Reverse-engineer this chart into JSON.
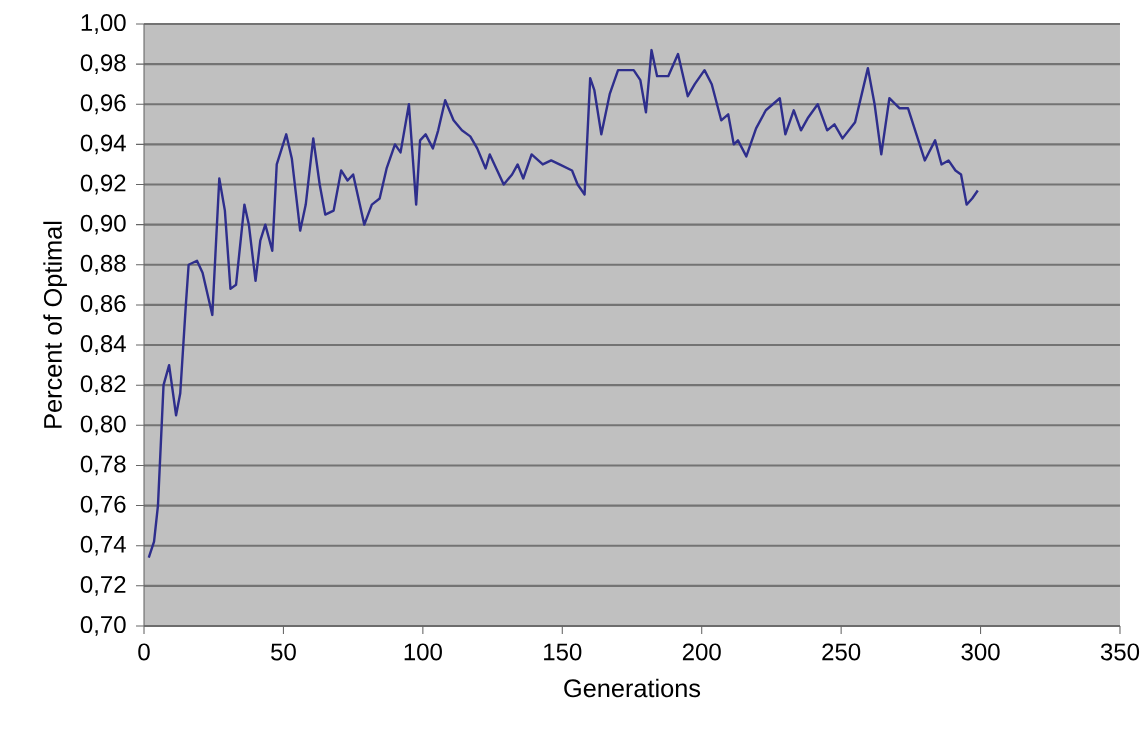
{
  "chart_data": {
    "type": "line",
    "xlabel": "Generations",
    "ylabel": "Percent of Optimal",
    "color": "#2e2e8c",
    "grid": "y",
    "xlim": [
      0,
      350
    ],
    "xticks": [
      0,
      50,
      100,
      150,
      200,
      250,
      300,
      350
    ],
    "ylim": [
      0.7,
      1.0
    ],
    "yticks": [
      {
        "value": 0.7,
        "label": "0,70"
      },
      {
        "value": 0.72,
        "label": "0,72"
      },
      {
        "value": 0.74,
        "label": "0,74"
      },
      {
        "value": 0.76,
        "label": "0,76"
      },
      {
        "value": 0.78,
        "label": "0,78"
      },
      {
        "value": 0.8,
        "label": "0,80"
      },
      {
        "value": 0.82,
        "label": "0,82"
      },
      {
        "value": 0.84,
        "label": "0,84"
      },
      {
        "value": 0.86,
        "label": "0,86"
      },
      {
        "value": 0.88,
        "label": "0,88"
      },
      {
        "value": 0.9,
        "label": "0,90"
      },
      {
        "value": 0.92,
        "label": "0,92"
      },
      {
        "value": 0.94,
        "label": "0,94"
      },
      {
        "value": 0.96,
        "label": "0,96"
      },
      {
        "value": 0.98,
        "label": "0,98"
      },
      {
        "value": 1.0,
        "label": "1,00"
      }
    ],
    "x": [
      1.7,
      3.6,
      5,
      6,
      7,
      9,
      11.5,
      13,
      15,
      16,
      19,
      21,
      24.5,
      27,
      29,
      31,
      33,
      36,
      37.6,
      40,
      41.7,
      43.5,
      46,
      47.6,
      51,
      53,
      56,
      58,
      60.7,
      63,
      65,
      68,
      70.7,
      73,
      75,
      79,
      81.7,
      84.5,
      87,
      90,
      92,
      95,
      97.6,
      99,
      101,
      103.6,
      105.5,
      108,
      111,
      114,
      117,
      119.5,
      122.5,
      124,
      129,
      132,
      134,
      136,
      139,
      143,
      146,
      149,
      153.5,
      155.5,
      158,
      160,
      161.5,
      164,
      167,
      170,
      175.6,
      178,
      180,
      182,
      184,
      188,
      191.5,
      195,
      197.5,
      201,
      203.6,
      207,
      209.5,
      211.5,
      213,
      216,
      219.5,
      223,
      228,
      230,
      233,
      235.6,
      238,
      241.6,
      245,
      247.6,
      250.5,
      255,
      259.6,
      262,
      264.4,
      267.3,
      271,
      274,
      277,
      280,
      283.7,
      286,
      288.5,
      291,
      293,
      295,
      297,
      299
    ],
    "values": [
      0.734,
      0.742,
      0.76,
      0.79,
      0.82,
      0.83,
      0.805,
      0.816,
      0.86,
      0.88,
      0.882,
      0.876,
      0.855,
      0.923,
      0.907,
      0.868,
      0.87,
      0.91,
      0.9,
      0.872,
      0.892,
      0.9,
      0.887,
      0.93,
      0.945,
      0.933,
      0.897,
      0.91,
      0.943,
      0.92,
      0.905,
      0.907,
      0.927,
      0.922,
      0.925,
      0.9,
      0.91,
      0.913,
      0.928,
      0.94,
      0.936,
      0.96,
      0.91,
      0.942,
      0.945,
      0.938,
      0.947,
      0.962,
      0.952,
      0.947,
      0.944,
      0.938,
      0.928,
      0.935,
      0.92,
      0.925,
      0.93,
      0.923,
      0.935,
      0.93,
      0.932,
      0.93,
      0.927,
      0.92,
      0.915,
      0.973,
      0.967,
      0.945,
      0.965,
      0.977,
      0.977,
      0.972,
      0.956,
      0.987,
      0.974,
      0.974,
      0.985,
      0.964,
      0.97,
      0.977,
      0.97,
      0.952,
      0.955,
      0.94,
      0.942,
      0.934,
      0.948,
      0.957,
      0.963,
      0.945,
      0.957,
      0.947,
      0.953,
      0.96,
      0.947,
      0.95,
      0.943,
      0.951,
      0.978,
      0.96,
      0.935,
      0.963,
      0.958,
      0.958,
      0.945,
      0.932,
      0.942,
      0.93,
      0.932,
      0.927,
      0.925,
      0.91,
      0.913,
      0.917
    ]
  }
}
